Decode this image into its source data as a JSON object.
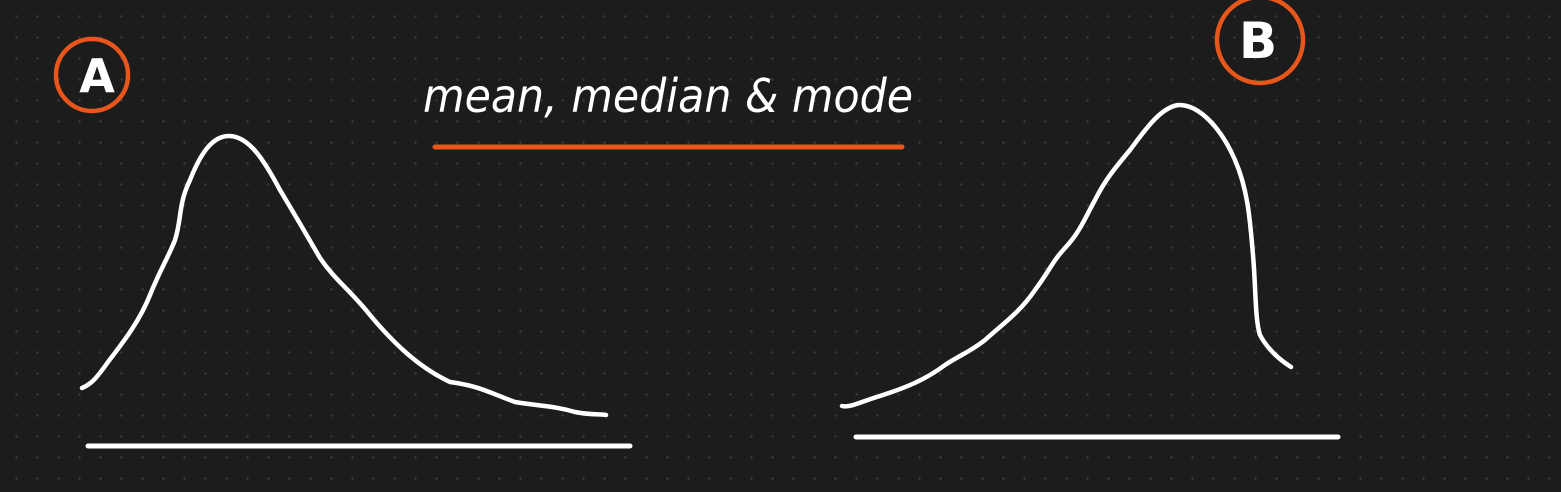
{
  "title": "mean, median & mode",
  "labels": {
    "a": "A",
    "b": "B"
  },
  "colors": {
    "background": "#1c1c1c",
    "ink": "#ffffff",
    "accent": "#e8561b"
  },
  "curves": {
    "a": "right-skewed distribution",
    "b": "left-skewed distribution"
  }
}
